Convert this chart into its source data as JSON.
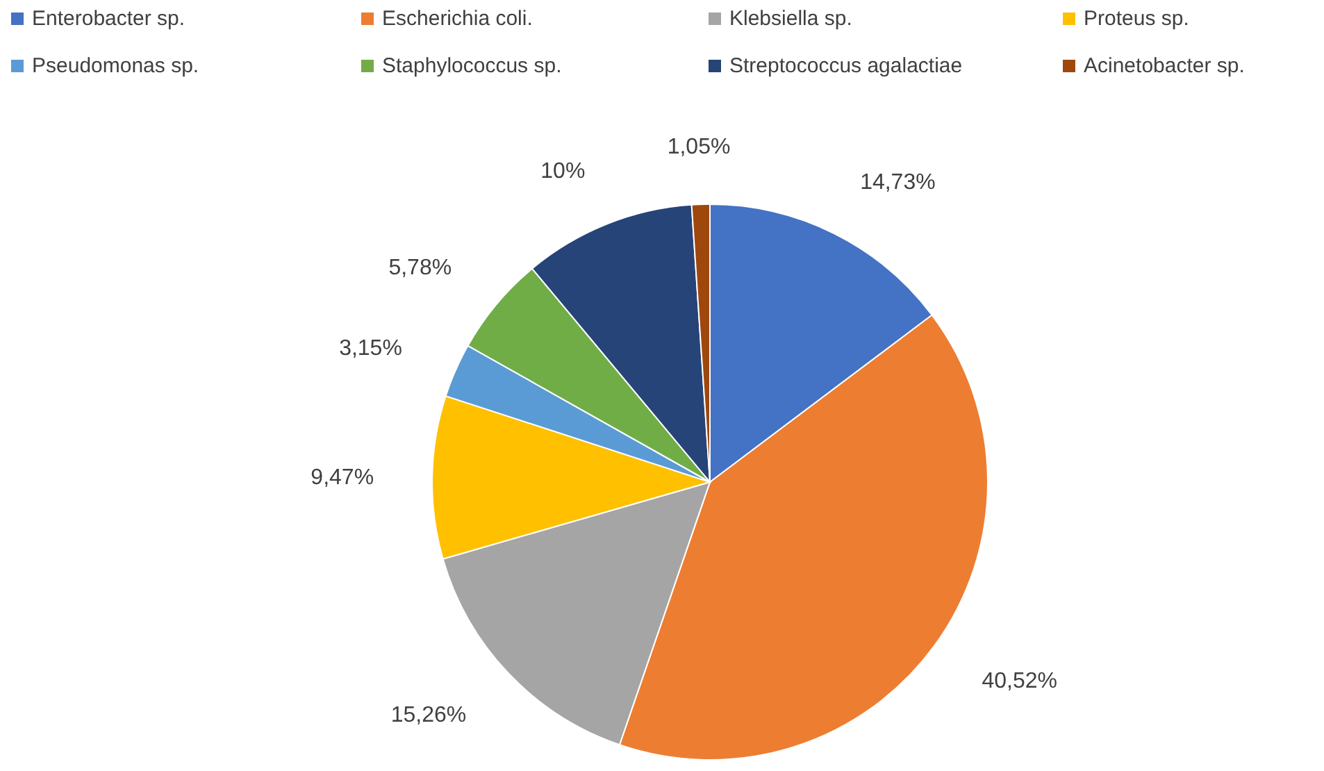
{
  "chart_data": {
    "type": "pie",
    "categories": [
      "Enterobacter sp.",
      "Escherichia coli.",
      "Klebsiella sp.",
      "Proteus sp.",
      "Pseudomonas sp.",
      "Staphylococcus sp.",
      "Streptococcus agalactiae",
      "Acinetobacter sp."
    ],
    "values": [
      14.73,
      40.52,
      15.26,
      9.47,
      3.15,
      5.78,
      10,
      1.05
    ],
    "value_labels": [
      "14,73%",
      "40,52%",
      "15,26%",
      "9,47%",
      "3,15%",
      "5,78%",
      "10%",
      "1,05%"
    ],
    "colors": [
      "#4472c4",
      "#ed7d31",
      "#a5a5a5",
      "#ffc000",
      "#5b9bd5",
      "#70ad47",
      "#264478",
      "#9e480e"
    ],
    "legend": "top"
  }
}
